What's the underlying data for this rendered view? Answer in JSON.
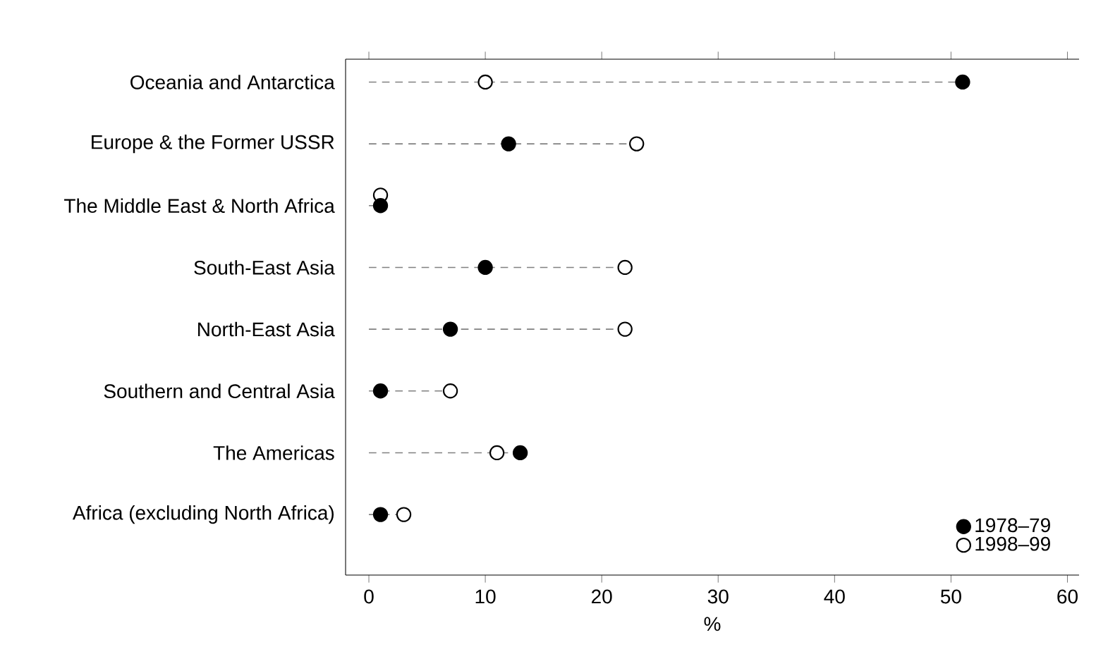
{
  "chart_data": {
    "type": "scatter",
    "orientation": "horizontal",
    "categories": [
      "Oceania and Antarctica",
      "Europe & the Former USSR",
      "The Middle East & North Africa",
      "South-East Asia",
      "North-East Asia",
      "Southern and Central Asia",
      "The Americas",
      "Africa (excluding North Africa)"
    ],
    "series": [
      {
        "name": "1978–79",
        "color": "#000000",
        "values": [
          51,
          12,
          1,
          10,
          7,
          1,
          13,
          1
        ]
      },
      {
        "name": "1998–99",
        "color": "#ffffff",
        "values": [
          10,
          23,
          1,
          22,
          22,
          7,
          11,
          3
        ]
      }
    ],
    "xlabel": "%",
    "xlim": [
      -2,
      61
    ],
    "xticks": [
      0,
      10,
      20,
      30,
      40,
      50,
      60
    ],
    "legend": "bottom right",
    "grid": "y"
  }
}
